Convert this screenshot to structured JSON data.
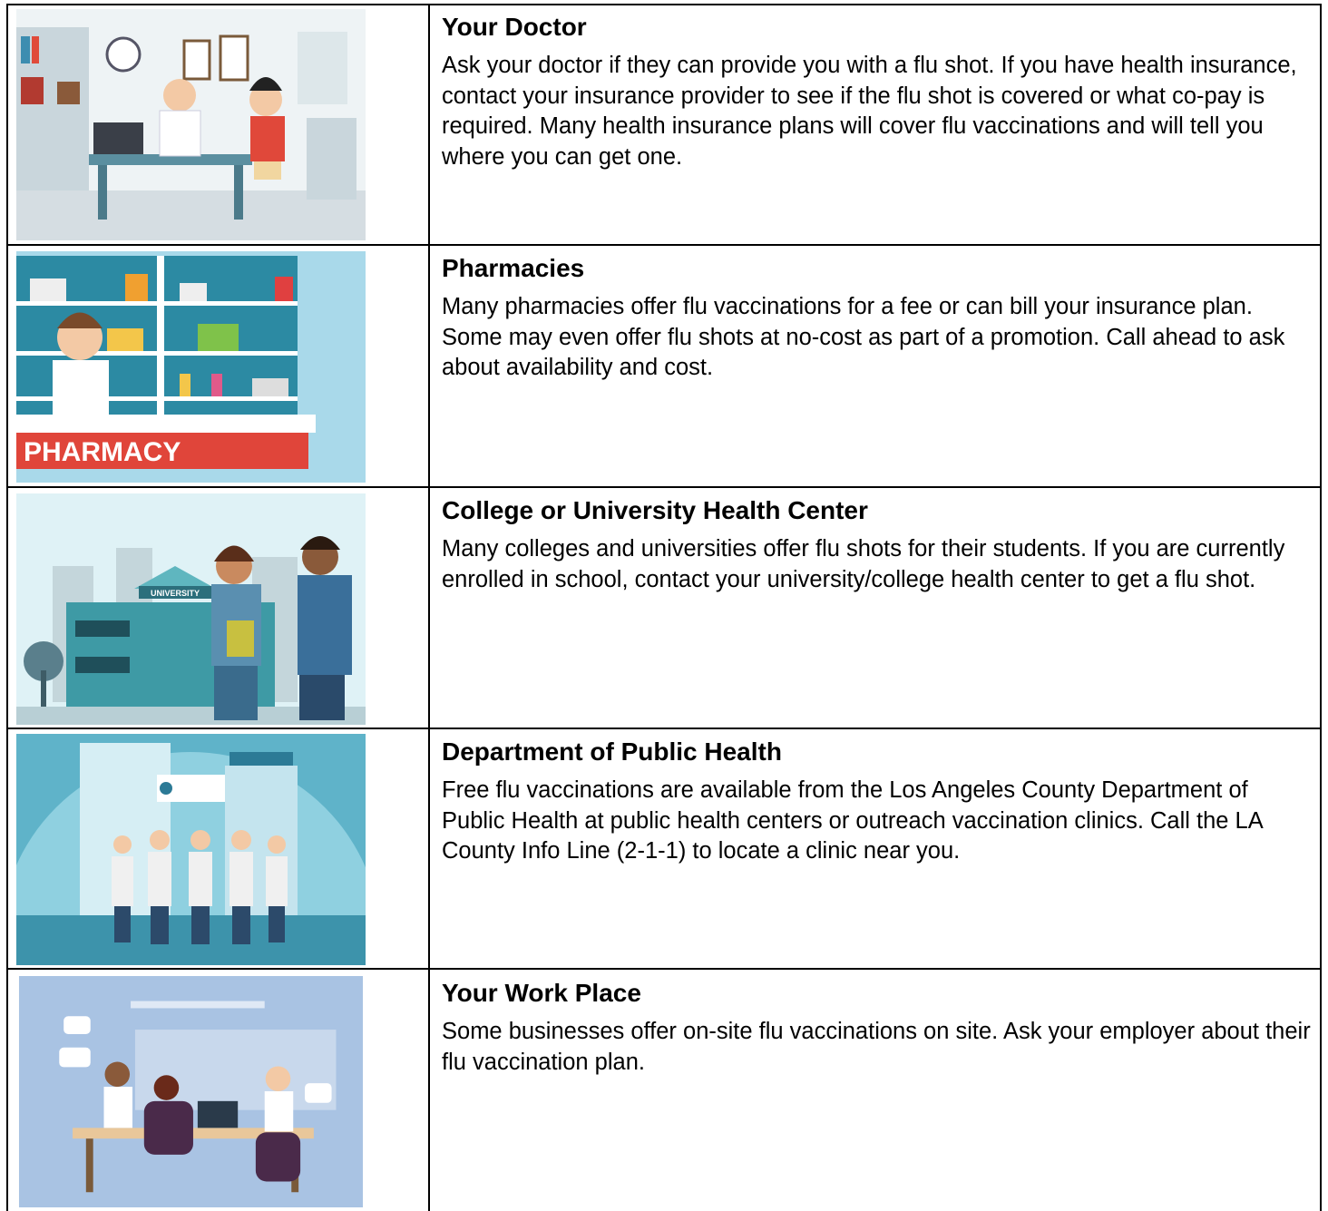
{
  "table": {
    "rows": [
      {
        "title": "Your Doctor",
        "text": "Ask your doctor if they can provide you with a flu shot. If you have health insurance, contact your insurance provider to see if the flu shot is covered or what co-pay is required. Many health insurance plans will cover flu vaccinations and will tell you where you can get one."
      },
      {
        "title": "Pharmacies",
        "image_label": "PHARMACY",
        "text": "Many pharmacies offer flu vaccinations for a fee or can bill your insurance plan. Some may even offer flu shots at no-cost as part of a promotion. Call ahead to ask about availability and cost."
      },
      {
        "title": "College or University Health Center",
        "image_label": "UNIVERSITY",
        "text": "Many colleges and universities offer flu shots for their students. If you are currently enrolled in school, contact your university/college health center to get a flu shot."
      },
      {
        "title": "Department of Public Health",
        "text": "Free flu vaccinations are available from the Los Angeles County Department of Public Health at public health centers or outreach vaccination clinics. Call the LA County Info Line (2-1-1) to locate a clinic near you."
      },
      {
        "title": "Your Work Place",
        "text": "Some businesses offer on-site flu vaccinations on site. Ask your employer about their flu vaccination plan."
      }
    ]
  }
}
